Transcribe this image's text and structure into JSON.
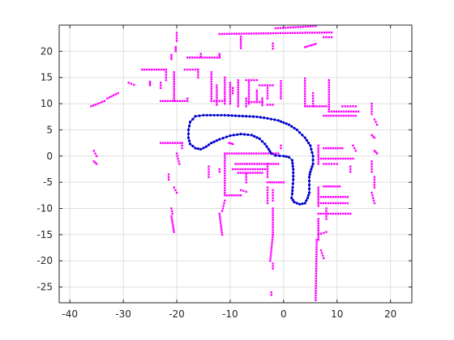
{
  "chart_data": {
    "type": "scatter",
    "title": "",
    "xlabel": "",
    "ylabel": "",
    "xlim": [
      -42,
      24
    ],
    "ylim": [
      -28,
      25
    ],
    "xticks": [
      -40,
      -30,
      -20,
      -10,
      0,
      10,
      20
    ],
    "yticks": [
      -25,
      -20,
      -15,
      -10,
      -5,
      0,
      5,
      10,
      15,
      20
    ],
    "grid": true,
    "legend": "none",
    "colors": {
      "landmarks": "#ff00ff",
      "trajectory": "#0000cc",
      "axis": "#262626",
      "grid": "#dfdfdf"
    },
    "series": [
      {
        "marker": "dot",
        "segments": [
          [
            [
              -12,
              23.3
            ],
            [
              9,
              23.6
            ]
          ],
          [
            [
              -1.5,
              24.4
            ],
            [
              6,
              24.8
            ]
          ],
          [
            [
              7.5,
              22.7
            ],
            [
              9,
              22.7
            ]
          ],
          [
            [
              -8,
              20.6
            ],
            [
              -8,
              22.8
            ]
          ],
          [
            [
              -2,
              20.5
            ],
            [
              -2,
              21.5
            ]
          ],
          [
            [
              4,
              20.8
            ],
            [
              6,
              21.4
            ]
          ],
          [
            [
              -20,
              23.5
            ],
            [
              -20,
              22
            ]
          ],
          [
            [
              -20.2,
              20
            ],
            [
              -20.2,
              20.8
            ]
          ],
          [
            [
              -21,
              18.5
            ],
            [
              -21,
              19.3
            ]
          ],
          [
            [
              -18,
              18.8
            ],
            [
              -12,
              18.8
            ]
          ],
          [
            [
              -12,
              18.8
            ],
            [
              -12,
              19.5
            ]
          ],
          [
            [
              -26.5,
              16.5
            ],
            [
              -22,
              16.5
            ]
          ],
          [
            [
              -22,
              16.5
            ],
            [
              -22,
              14.5
            ]
          ],
          [
            [
              -25,
              14.2
            ],
            [
              -25,
              13.5
            ]
          ],
          [
            [
              -23,
              14
            ],
            [
              -23,
              13
            ]
          ],
          [
            [
              -29,
              14
            ],
            [
              -28,
              13.6
            ]
          ],
          [
            [
              -33,
              11
            ],
            [
              -31,
              12
            ]
          ],
          [
            [
              -36,
              9.5
            ],
            [
              -33.5,
              10.5
            ]
          ],
          [
            [
              -18.5,
              16.5
            ],
            [
              -16,
              16.5
            ]
          ],
          [
            [
              -16,
              16.5
            ],
            [
              -16,
              15
            ]
          ],
          [
            [
              -20.5,
              16
            ],
            [
              -20.5,
              10.6
            ]
          ],
          [
            [
              -23,
              10.5
            ],
            [
              -18,
              10.5
            ]
          ],
          [
            [
              -18,
              10.5
            ],
            [
              -18,
              11
            ]
          ],
          [
            [
              -13.5,
              16
            ],
            [
              -13.5,
              10.5
            ]
          ],
          [
            [
              -13.5,
              10.5
            ],
            [
              -11,
              10.5
            ]
          ],
          [
            [
              -12.5,
              13.5
            ],
            [
              -12.5,
              9.8
            ]
          ],
          [
            [
              -11,
              15
            ],
            [
              -11,
              10
            ]
          ],
          [
            [
              -10,
              14
            ],
            [
              -10,
              10
            ]
          ],
          [
            [
              -8.5,
              14.5
            ],
            [
              -8.5,
              9.5
            ]
          ],
          [
            [
              -7,
              14.5
            ],
            [
              -5,
              14.5
            ]
          ],
          [
            [
              -6.5,
              14.5
            ],
            [
              -6.5,
              10
            ]
          ],
          [
            [
              -7,
              11
            ],
            [
              -7,
              9.5
            ]
          ],
          [
            [
              -5,
              12.5
            ],
            [
              -5,
              10.3
            ]
          ],
          [
            [
              -6.5,
              10.3
            ],
            [
              -4,
              10.3
            ]
          ],
          [
            [
              -4,
              11
            ],
            [
              -4,
              9.7
            ]
          ],
          [
            [
              -4.5,
              13.5
            ],
            [
              -2,
              13.5
            ]
          ],
          [
            [
              -3,
              13.5
            ],
            [
              -3,
              11
            ]
          ],
          [
            [
              -3,
              9.8
            ],
            [
              -2,
              9.8
            ]
          ],
          [
            [
              -0.5,
              14.3
            ],
            [
              -0.5,
              11
            ]
          ],
          [
            [
              4,
              14.8
            ],
            [
              4,
              9.5
            ]
          ],
          [
            [
              4,
              9.5
            ],
            [
              8,
              9.5
            ]
          ],
          [
            [
              5.5,
              12
            ],
            [
              5.5,
              9.5
            ]
          ],
          [
            [
              8.5,
              14.5
            ],
            [
              8.5,
              8.5
            ]
          ],
          [
            [
              8.5,
              8.5
            ],
            [
              14,
              8.5
            ]
          ],
          [
            [
              11,
              9.5
            ],
            [
              13.5,
              9.5
            ]
          ],
          [
            [
              7.5,
              7.7
            ],
            [
              13.5,
              7.7
            ]
          ],
          [
            [
              16.5,
              10
            ],
            [
              16.5,
              8
            ]
          ],
          [
            [
              17,
              7
            ],
            [
              17.5,
              6
            ]
          ],
          [
            [
              16.5,
              4
            ],
            [
              17,
              3.5
            ]
          ],
          [
            [
              17,
              1
            ],
            [
              17.5,
              0.5
            ]
          ],
          [
            [
              16.5,
              -1
            ],
            [
              16.5,
              -3
            ]
          ],
          [
            [
              17,
              -4
            ],
            [
              17,
              -6
            ]
          ],
          [
            [
              16.5,
              -7
            ],
            [
              17,
              -9
            ]
          ],
          [
            [
              6.5,
              2
            ],
            [
              6.5,
              -1.5
            ]
          ],
          [
            [
              7.5,
              1.5
            ],
            [
              11,
              1.5
            ]
          ],
          [
            [
              7,
              -0.5
            ],
            [
              13,
              -0.5
            ]
          ],
          [
            [
              7.5,
              -1.5
            ],
            [
              10,
              -1.5
            ]
          ],
          [
            [
              12.5,
              -2
            ],
            [
              12.5,
              -3
            ]
          ],
          [
            [
              13,
              2
            ],
            [
              13.5,
              1
            ]
          ],
          [
            [
              7.5,
              -5.8
            ],
            [
              10.5,
              -5.8
            ]
          ],
          [
            [
              6.5,
              -6
            ],
            [
              6.5,
              -9.5
            ]
          ],
          [
            [
              7,
              -7.8
            ],
            [
              12,
              -7.8
            ]
          ],
          [
            [
              7,
              -9
            ],
            [
              12,
              -9
            ]
          ],
          [
            [
              6.5,
              -11
            ],
            [
              12.5,
              -11
            ]
          ],
          [
            [
              8,
              -10
            ],
            [
              8,
              -12
            ]
          ],
          [
            [
              6.5,
              -12
            ],
            [
              6.5,
              -16
            ]
          ],
          [
            [
              6.5,
              -15
            ],
            [
              8,
              -14.5
            ]
          ],
          [
            [
              6.2,
              -16
            ],
            [
              6,
              -27.5
            ]
          ],
          [
            [
              7,
              -18
            ],
            [
              7.5,
              -19.5
            ]
          ],
          [
            [
              -23,
              2.5
            ],
            [
              -19,
              2.5
            ]
          ],
          [
            [
              -19,
              2.5
            ],
            [
              -19,
              1.5
            ]
          ],
          [
            [
              -20,
              0.5
            ],
            [
              -19.5,
              -1.5
            ]
          ],
          [
            [
              -21.5,
              -3.5
            ],
            [
              -21.5,
              -4.5
            ]
          ],
          [
            [
              -20.5,
              -6
            ],
            [
              -20,
              -7
            ]
          ],
          [
            [
              -21,
              -10
            ],
            [
              -20.8,
              -11
            ]
          ],
          [
            [
              -21,
              -11.5
            ],
            [
              -20.5,
              -14.5
            ]
          ],
          [
            [
              -35.5,
              1
            ],
            [
              -35,
              0
            ]
          ],
          [
            [
              -35.5,
              -1
            ],
            [
              -35,
              -1.5
            ]
          ],
          [
            [
              -11,
              0.5
            ],
            [
              -1,
              0.5
            ]
          ],
          [
            [
              -11,
              0.5
            ],
            [
              -11,
              -7.5
            ]
          ],
          [
            [
              -11,
              -7.5
            ],
            [
              -8,
              -7.5
            ]
          ],
          [
            [
              -9,
              -1.5
            ],
            [
              -1,
              -1.5
            ]
          ],
          [
            [
              -9.5,
              -2.5
            ],
            [
              -3,
              -2.5
            ]
          ],
          [
            [
              -3,
              -1.5
            ],
            [
              -3,
              -4
            ]
          ],
          [
            [
              -7,
              -3.5
            ],
            [
              -7,
              -5
            ]
          ],
          [
            [
              -8.5,
              -3.2
            ],
            [
              -4,
              -3.2
            ]
          ],
          [
            [
              -3,
              -5
            ],
            [
              0,
              -5
            ]
          ],
          [
            [
              -8,
              -6.5
            ],
            [
              -7,
              -6.8
            ]
          ],
          [
            [
              -3,
              -6
            ],
            [
              -3,
              -9
            ]
          ],
          [
            [
              -2,
              -6.5
            ],
            [
              -2,
              -8.5
            ]
          ],
          [
            [
              -11,
              -8.5
            ],
            [
              -11.5,
              -10.5
            ]
          ],
          [
            [
              -12,
              -11
            ],
            [
              -11.5,
              -15
            ]
          ],
          [
            [
              -14,
              -2
            ],
            [
              -14,
              -4
            ]
          ],
          [
            [
              -12,
              -2.5
            ],
            [
              -12,
              -3
            ]
          ],
          [
            [
              -2,
              -10
            ],
            [
              -2,
              -15
            ]
          ],
          [
            [
              -2,
              -15
            ],
            [
              -2.5,
              -20
            ]
          ],
          [
            [
              -2,
              -20.5
            ],
            [
              -2,
              -21.5
            ]
          ],
          [
            [
              -2.3,
              -26
            ],
            [
              -2.3,
              -26.5
            ]
          ],
          [
            [
              -9.5,
              12
            ],
            [
              -9.5,
              13
            ]
          ],
          [
            [
              -15.5,
              19.5
            ],
            [
              -15.5,
              19
            ]
          ],
          [
            [
              -10.2,
              2.5
            ],
            [
              -9.5,
              2.3
            ]
          ],
          [
            [
              -0.5,
              1.5
            ],
            [
              -0.5,
              2
            ]
          ]
        ]
      },
      {
        "marker": "dot-line",
        "path": [
          [
            1.5,
            -8
          ],
          [
            2,
            -8.8
          ],
          [
            3,
            -9.2
          ],
          [
            4,
            -9
          ],
          [
            4.5,
            -8
          ],
          [
            4.8,
            -7
          ],
          [
            4.8,
            -5.5
          ],
          [
            4.8,
            -4
          ],
          [
            5,
            -3
          ],
          [
            5.5,
            -1.5
          ],
          [
            5.5,
            0
          ],
          [
            5,
            2
          ],
          [
            4,
            3.5
          ],
          [
            2.5,
            5
          ],
          [
            1,
            6
          ],
          [
            -1,
            6.8
          ],
          [
            -3,
            7.2
          ],
          [
            -5,
            7.5
          ],
          [
            -7,
            7.6
          ],
          [
            -9,
            7.7
          ],
          [
            -11,
            7.8
          ],
          [
            -13,
            7.8
          ],
          [
            -15,
            7.8
          ],
          [
            -16.5,
            7.6
          ],
          [
            -17.5,
            6.5
          ],
          [
            -17.8,
            5
          ],
          [
            -17.8,
            3.5
          ],
          [
            -17.5,
            2.3
          ],
          [
            -16.5,
            1.5
          ],
          [
            -15.5,
            1.3
          ],
          [
            -14.5,
            1.8
          ],
          [
            -13.5,
            2.5
          ],
          [
            -12,
            3.2
          ],
          [
            -10,
            3.9
          ],
          [
            -8,
            4.2
          ],
          [
            -6,
            4
          ],
          [
            -4.5,
            3.3
          ],
          [
            -3.5,
            2.3
          ],
          [
            -2.8,
            1.3
          ],
          [
            -2.3,
            0.5
          ],
          [
            -1.5,
            0.1
          ],
          [
            0,
            0
          ],
          [
            1,
            -0.2
          ],
          [
            1.6,
            -0.8
          ],
          [
            1.8,
            -2.5
          ],
          [
            1.8,
            -4.5
          ],
          [
            1.7,
            -6
          ],
          [
            1.6,
            -7.2
          ],
          [
            1.5,
            -8
          ]
        ]
      }
    ]
  }
}
